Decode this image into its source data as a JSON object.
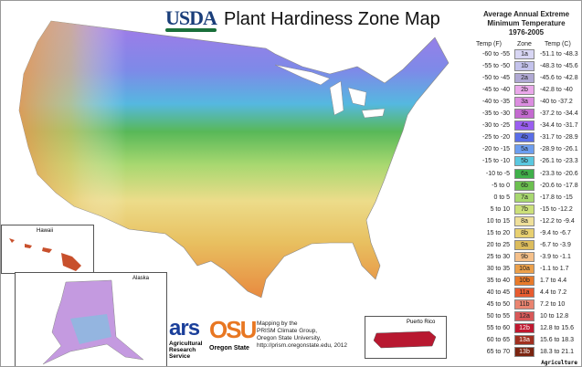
{
  "header": {
    "logo": "USDA",
    "title": "Plant Hardiness Zone Map"
  },
  "legend": {
    "title_lines": [
      "Average Annual Extreme",
      "Minimum Temperature",
      "1976-2005"
    ],
    "col_f": "Temp (F)",
    "col_zone": "Zone",
    "col_c": "Temp (C)",
    "rows": [
      {
        "f": "-60 to -55",
        "zone": "1a",
        "c": "-51.1 to -48.3",
        "color": "#d8d6f4"
      },
      {
        "f": "-55 to -50",
        "zone": "1b",
        "c": "-48.3 to -45.6",
        "color": "#c4c3ec"
      },
      {
        "f": "-50 to -45",
        "zone": "2a",
        "c": "-45.6 to -42.8",
        "color": "#b0a9d4"
      },
      {
        "f": "-45 to -40",
        "zone": "2b",
        "c": "-42.8 to -40",
        "color": "#eaa8ea"
      },
      {
        "f": "-40 to -35",
        "zone": "3a",
        "c": "-40 to -37.2",
        "color": "#dc8de0"
      },
      {
        "f": "-35 to -30",
        "zone": "3b",
        "c": "-37.2 to -34.4",
        "color": "#c46ad0"
      },
      {
        "f": "-30 to -25",
        "zone": "4a",
        "c": "-34.4 to -31.7",
        "color": "#9a5ef0"
      },
      {
        "f": "-25 to -20",
        "zone": "4b",
        "c": "-31.7 to -28.9",
        "color": "#5a6ee8"
      },
      {
        "f": "-20 to -15",
        "zone": "5a",
        "c": "-28.9 to -26.1",
        "color": "#6d9ef0"
      },
      {
        "f": "-15 to -10",
        "zone": "5b",
        "c": "-26.1 to -23.3",
        "color": "#5ac8e0"
      },
      {
        "f": "-10 to -5",
        "zone": "6a",
        "c": "-23.3 to -20.6",
        "color": "#3fb04a"
      },
      {
        "f": "-5 to 0",
        "zone": "6b",
        "c": "-20.6 to -17.8",
        "color": "#6cc050"
      },
      {
        "f": "0 to 5",
        "zone": "7a",
        "c": "-17.8 to -15",
        "color": "#a8d870"
      },
      {
        "f": "5 to 10",
        "zone": "7b",
        "c": "-15 to -12.2",
        "color": "#cce07a"
      },
      {
        "f": "10 to 15",
        "zone": "8a",
        "c": "-12.2 to -9.4",
        "color": "#efe09a"
      },
      {
        "f": "15 to 20",
        "zone": "8b",
        "c": "-9.4 to -6.7",
        "color": "#e8d070"
      },
      {
        "f": "20 to 25",
        "zone": "9a",
        "c": "-6.7 to -3.9",
        "color": "#dcbc5c"
      },
      {
        "f": "25 to 30",
        "zone": "9b",
        "c": "-3.9 to -1.1",
        "color": "#f5c08a"
      },
      {
        "f": "30 to 35",
        "zone": "10a",
        "c": "-1.1 to 1.7",
        "color": "#eca04a"
      },
      {
        "f": "35 to 40",
        "zone": "10b",
        "c": "1.7 to 4.4",
        "color": "#e87a2a"
      },
      {
        "f": "40 to 45",
        "zone": "11a",
        "c": "4.4 to 7.2",
        "color": "#e85c30"
      },
      {
        "f": "45 to 50",
        "zone": "11b",
        "c": "7.2 to 10",
        "color": "#ea8470"
      },
      {
        "f": "50 to 55",
        "zone": "12a",
        "c": "10 to 12.8",
        "color": "#d85858"
      },
      {
        "f": "55 to 60",
        "zone": "12b",
        "c": "12.8 to 15.6",
        "color": "#c01830"
      },
      {
        "f": "60 to 65",
        "zone": "13a",
        "c": "15.6 to 18.3",
        "color": "#a03020"
      },
      {
        "f": "65 to 70",
        "zone": "13b",
        "c": "18.3 to 21.1",
        "color": "#7a2410"
      }
    ]
  },
  "insets": {
    "hawaii": "Hawaii",
    "alaska": "Alaska",
    "puerto_rico": "Puerto Rico"
  },
  "logos": {
    "ars": "ars",
    "ars_name": [
      "Agricultural",
      "Research",
      "Service"
    ],
    "osu": "OSU",
    "osu_name": "Oregon State"
  },
  "credits": [
    "Mapping by the",
    "PRISM Climate Group,",
    "Oregon State University,",
    "http://prism.oregonstate.edu, 2012"
  ],
  "footer": "Agriculture"
}
